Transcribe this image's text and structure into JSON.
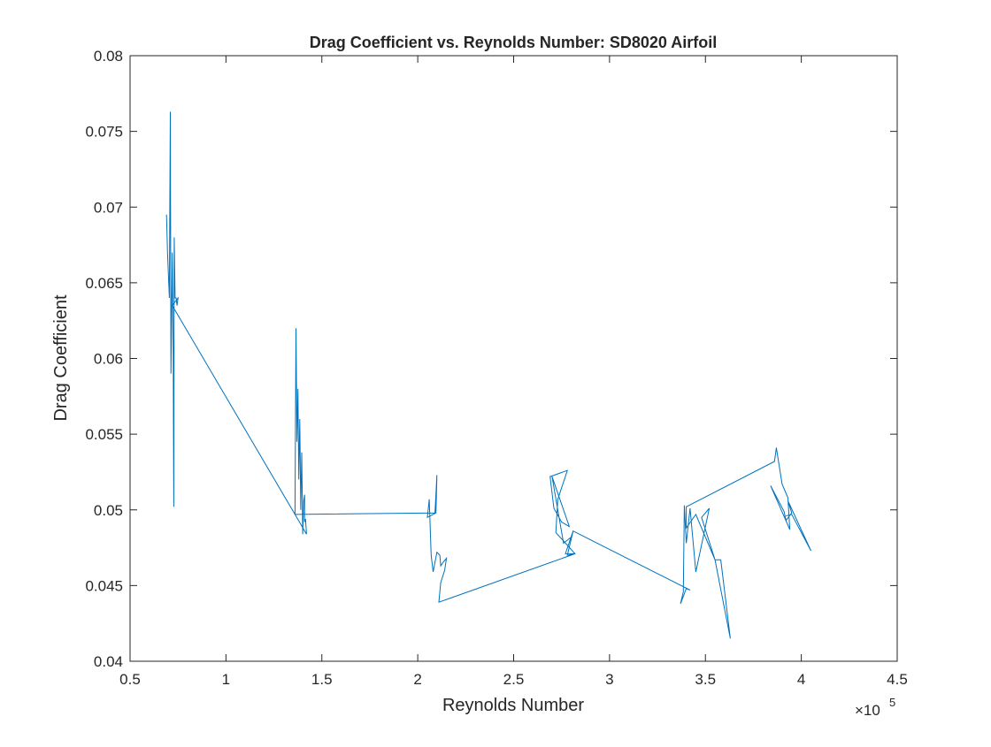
{
  "chart_data": {
    "type": "line",
    "title": "Drag Coefficient vs. Reynolds Number: SD8020 Airfoil",
    "xlabel": "Reynolds Number",
    "ylabel": "Drag Coefficient",
    "x_exponent_label": "×10",
    "x_exponent_power": "5",
    "xlim": [
      0.5,
      4.5
    ],
    "ylim": [
      0.04,
      0.08
    ],
    "xticks": [
      0.5,
      1,
      1.5,
      2,
      2.5,
      3,
      3.5,
      4,
      4.5
    ],
    "xtick_labels": [
      "0.5",
      "1",
      "1.5",
      "2",
      "2.5",
      "3",
      "3.5",
      "4",
      "4.5"
    ],
    "yticks": [
      0.04,
      0.045,
      0.05,
      0.055,
      0.06,
      0.065,
      0.07,
      0.075,
      0.08
    ],
    "ytick_labels": [
      "0.04",
      "0.045",
      "0.05",
      "0.055",
      "0.06",
      "0.065",
      "0.07",
      "0.075",
      "0.08"
    ],
    "x_scale_note": "x values shown in units of 10^5",
    "grid": false,
    "line_color": "#0072BD",
    "series": [
      {
        "x": [
          0.69,
          0.695,
          0.705,
          0.71,
          0.713,
          0.716,
          0.72,
          0.725,
          0.728,
          0.73,
          0.735,
          0.74,
          0.745,
          0.75,
          0.72,
          1.36,
          1.365,
          1.37,
          1.375,
          1.38,
          1.385,
          1.39,
          1.395,
          1.4,
          1.405,
          1.41,
          1.41,
          1.415,
          1.42,
          1.36,
          1.37,
          2.09,
          2.1,
          2.095,
          2.05,
          2.06,
          2.07,
          2.08,
          2.1,
          2.115,
          2.12,
          2.13,
          2.15,
          2.14,
          2.12,
          2.11,
          2.82,
          2.72,
          2.73,
          2.78,
          2.69,
          2.71,
          2.75,
          2.79,
          2.7,
          2.73,
          2.76,
          2.8,
          2.81,
          2.78,
          2.82,
          2.77,
          2.81,
          3.42,
          3.4,
          3.37,
          3.385,
          3.39,
          3.4,
          3.42,
          3.45,
          3.52,
          3.48,
          3.55,
          3.58,
          3.63,
          3.55,
          3.45,
          3.4,
          3.4,
          3.86,
          3.87,
          3.9,
          3.93,
          3.94,
          3.84,
          3.91,
          3.92,
          3.95,
          3.93,
          4.05,
          3.95,
          3.92
        ],
        "y": [
          0.0695,
          0.067,
          0.064,
          0.0763,
          0.059,
          0.062,
          0.067,
          0.06,
          0.0502,
          0.068,
          0.064,
          0.064,
          0.0635,
          0.064,
          0.0635,
          0.0497,
          0.062,
          0.0545,
          0.058,
          0.052,
          0.056,
          0.05,
          0.0538,
          0.0484,
          0.0506,
          0.051,
          0.0492,
          0.0494,
          0.0484,
          0.0497,
          0.0497,
          0.0498,
          0.0523,
          0.0498,
          0.0495,
          0.0507,
          0.047,
          0.0459,
          0.0472,
          0.047,
          0.0463,
          0.0465,
          0.0468,
          0.046,
          0.0452,
          0.0439,
          0.0471,
          0.0485,
          0.0507,
          0.0526,
          0.0522,
          0.0501,
          0.0492,
          0.0489,
          0.0522,
          0.05,
          0.0478,
          0.0482,
          0.0486,
          0.047,
          0.0471,
          0.0471,
          0.0486,
          0.0447,
          0.0448,
          0.0438,
          0.0446,
          0.0503,
          0.0478,
          0.0501,
          0.0459,
          0.0501,
          0.0495,
          0.0467,
          0.0467,
          0.0415,
          0.0467,
          0.0497,
          0.0488,
          0.0502,
          0.0532,
          0.0541,
          0.0517,
          0.0508,
          0.0487,
          0.0516,
          0.0499,
          0.0493,
          0.0498,
          0.0506,
          0.0473,
          0.0497,
          0.0496
        ]
      }
    ]
  }
}
